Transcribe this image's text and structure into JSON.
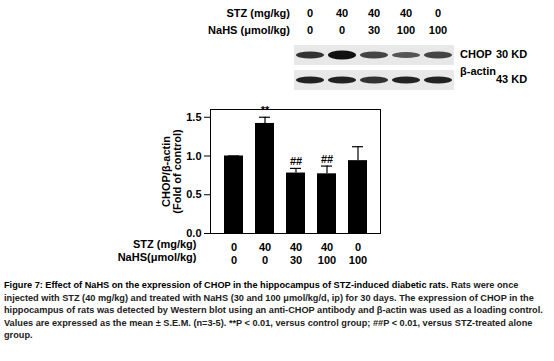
{
  "blot": {
    "rows": [
      {
        "label": "STZ (mg/kg)",
        "values": [
          0,
          40,
          40,
          40,
          0
        ]
      },
      {
        "label": "NaHS (μmol/kg)",
        "values": [
          0,
          0,
          30,
          100,
          100
        ]
      }
    ],
    "bands": [
      {
        "label": "CHOP",
        "size": "30 KD"
      },
      {
        "label": "β-actin",
        "size": "43 KD"
      }
    ]
  },
  "chart_data": {
    "type": "bar",
    "categories": [
      null,
      null,
      null,
      null,
      null
    ],
    "values": [
      1.0,
      1.42,
      0.78,
      0.77,
      0.94
    ],
    "errors": [
      0,
      0.08,
      0.06,
      0.1,
      0.18
    ],
    "annotations": [
      null,
      "**",
      "##",
      "##",
      null
    ],
    "color": "#000000",
    "y_label": "CHOP/β-actin\n(Fold of control)",
    "ylim": [
      0,
      1.6
    ],
    "yticks": [
      {
        "value": 0,
        "label": "0.0"
      },
      {
        "value": 0.5,
        "label": "0.5"
      },
      {
        "value": 1,
        "label": "1.0"
      },
      {
        "value": 1.5,
        "label": "1.5"
      }
    ],
    "x_rows": [
      {
        "label": "STZ (mg/kg)",
        "values": [
          0,
          40,
          40,
          40,
          0
        ]
      },
      {
        "label": "NaHS(μmol/kg)",
        "values": [
          0,
          0,
          30,
          100,
          100
        ]
      }
    ]
  },
  "caption": {
    "title": "Figure 7: Effect of NaHS on the expression of CHOP in the hippocampus of STZ-induced diabetic rats.",
    "text": "Rats were once injected with STZ (40 mg/kg) and treated with NaHS (30 and 100 μmol/kg/d, ip) for 30 days. The expression of CHOP in the hippocampus of rats was detected by Western blot using an anti-CHOP antibody and β-actin was used as a loading control. Values are expressed as the mean ± S.E.M. (n=3-5). **P < 0.01, versus control group; ##P < 0.01, versus STZ-treated alone group."
  }
}
